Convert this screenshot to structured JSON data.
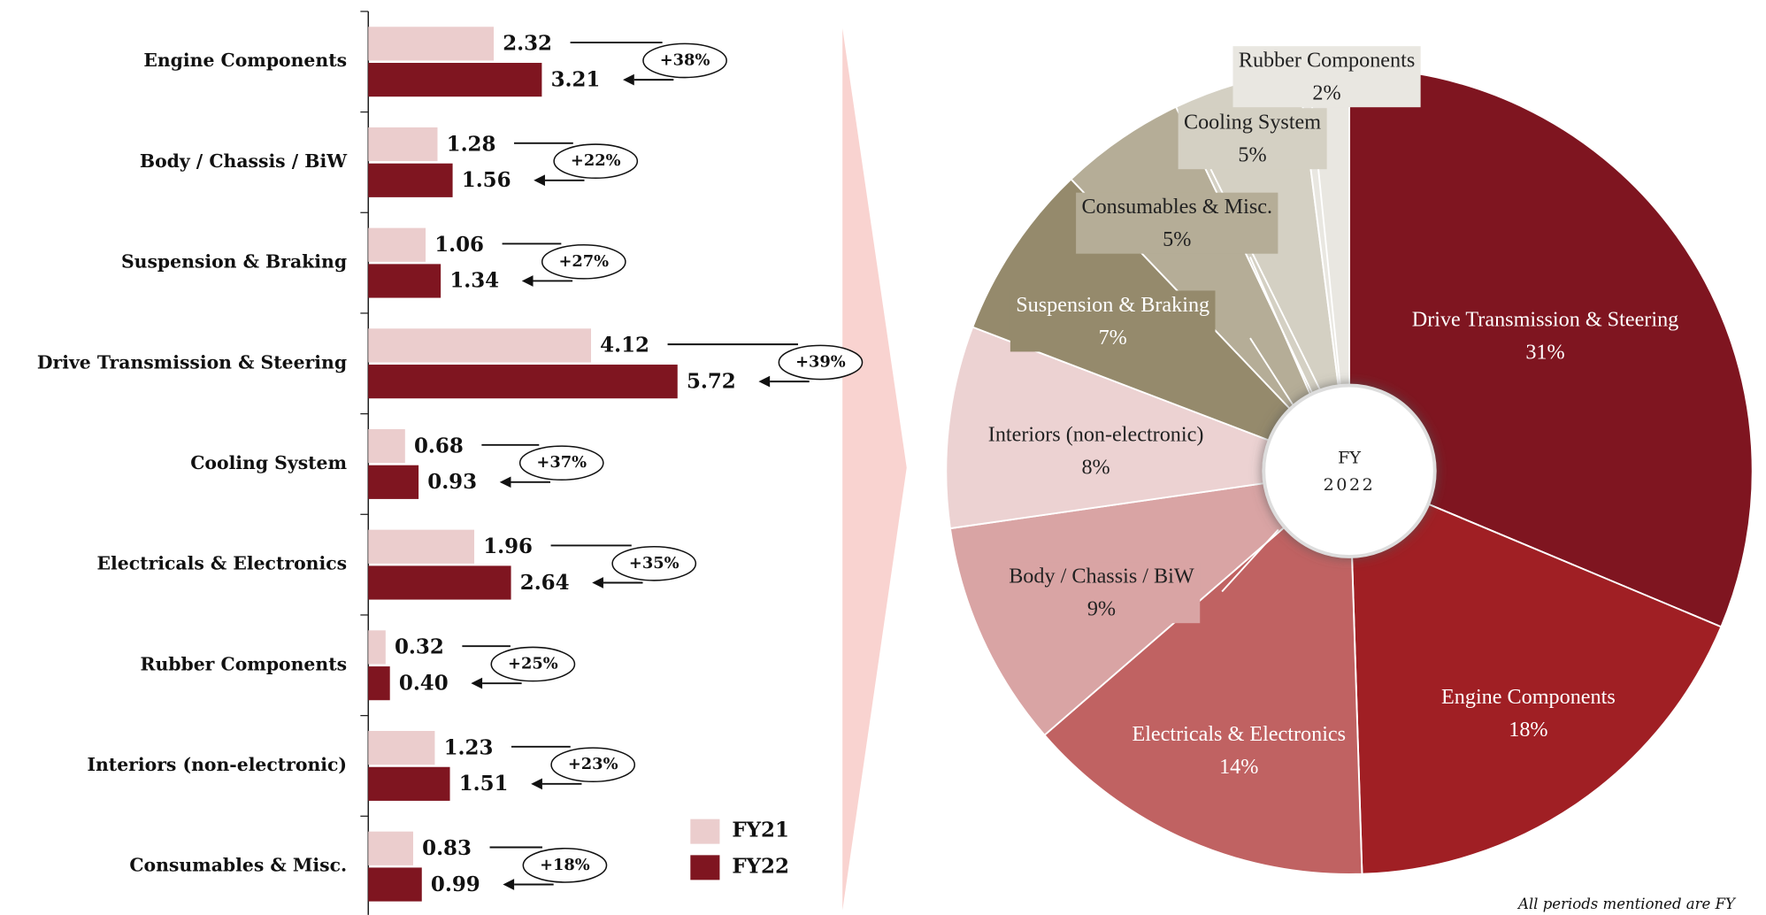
{
  "chart_data": [
    {
      "type": "hbar",
      "categories": [
        "Engine Components",
        "Body / Chassis / BiW",
        "Suspension & Braking",
        "Drive Transmission & Steering",
        "Cooling System",
        "Electricals & Electronics",
        "Rubber Components",
        "Interiors (non-electronic)",
        "Consumables & Misc."
      ],
      "series": [
        {
          "name": "FY21",
          "color": "#ebcdcd",
          "values": [
            2.32,
            1.28,
            1.06,
            4.12,
            0.68,
            1.96,
            0.32,
            1.23,
            0.83
          ],
          "value_labels": [
            "2.32",
            "1.28",
            "1.06",
            "4.12",
            "0.68",
            "1.96",
            "0.32",
            "1.23",
            "0.83"
          ]
        },
        {
          "name": "FY22",
          "color": "#7f1520",
          "values": [
            3.21,
            1.56,
            1.34,
            5.72,
            0.93,
            2.64,
            0.4,
            1.51,
            0.99
          ],
          "value_labels": [
            "3.21",
            "1.56",
            "1.34",
            "5.72",
            "0.93",
            "2.64",
            "0.40",
            "1.51",
            "0.99"
          ]
        }
      ],
      "growth_labels": [
        "+38%",
        "+22%",
        "+27%",
        "+39%",
        "+37%",
        "+35%",
        "+25%",
        "+23%",
        "+18%"
      ],
      "xlim": [
        0,
        6
      ]
    },
    {
      "type": "pie",
      "center_label": [
        "FY",
        "2022"
      ],
      "categories": [
        "Drive Transmission & Steering",
        "Engine Components",
        "Electricals & Electronics",
        "Body / Chassis / BiW",
        "Interiors (non-electronic)",
        "Suspension & Braking",
        "Consumables & Misc.",
        "Cooling System",
        "Rubber Components"
      ],
      "values": [
        31,
        18,
        14,
        9,
        8,
        7,
        5,
        5,
        2
      ],
      "value_labels": [
        "31%",
        "18%",
        "14%",
        "9%",
        "8%",
        "7%",
        "5%",
        "5%",
        "2%"
      ],
      "colors": [
        "#7f1520",
        "#a01f24",
        "#c06262",
        "#d9a4a4",
        "#ecd2d2",
        "#958a6c",
        "#b5ad97",
        "#d4d0c3",
        "#e9e7e1"
      ]
    }
  ],
  "footnote": "All periods mentioned are FY"
}
